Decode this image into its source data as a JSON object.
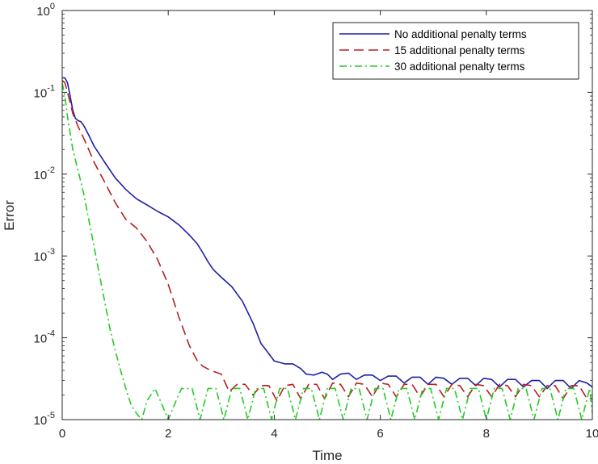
{
  "chart_data": {
    "type": "line",
    "xlabel": "Time",
    "ylabel": "Error",
    "xlim": [
      0,
      10
    ],
    "ylim": [
      1e-05,
      1
    ],
    "yscale": "log",
    "grid": false,
    "legend_position": "top-right",
    "x_ticks": [
      "0",
      "2",
      "4",
      "6",
      "8",
      "10"
    ],
    "y_ticks": [
      {
        "base": "10",
        "exp": "-5",
        "value": 1e-05
      },
      {
        "base": "10",
        "exp": "-4",
        "value": 0.0001
      },
      {
        "base": "10",
        "exp": "-3",
        "value": 0.001
      },
      {
        "base": "10",
        "exp": "-2",
        "value": 0.01
      },
      {
        "base": "10",
        "exp": "-1",
        "value": 0.1
      },
      {
        "base": "10",
        "exp": "0",
        "value": 1
      }
    ],
    "series": [
      {
        "name": "No additional penalty terms",
        "color": "#1f1fa8",
        "style": "solid",
        "x": [
          0,
          0.05,
          0.1,
          0.15,
          0.2,
          0.25,
          0.3,
          0.35,
          0.4,
          0.5,
          0.6,
          0.8,
          1.0,
          1.2,
          1.4,
          1.6,
          1.8,
          2.0,
          2.2,
          2.4,
          2.55,
          2.65,
          2.75,
          2.85,
          3.0,
          3.2,
          3.4,
          3.6,
          3.75,
          3.85,
          4.0,
          4.2,
          4.35,
          4.5,
          4.6,
          4.75,
          4.9,
          5.0,
          5.1,
          5.25,
          5.4,
          5.55,
          5.7,
          5.85,
          6.0,
          6.15,
          6.3,
          6.45,
          6.6,
          6.75,
          6.9,
          7.05,
          7.2,
          7.35,
          7.5,
          7.65,
          7.8,
          7.95,
          8.1,
          8.25,
          8.4,
          8.55,
          8.7,
          8.85,
          9.0,
          9.15,
          9.3,
          9.45,
          9.6,
          9.75,
          9.9,
          10.0
        ],
        "y": [
          0.15,
          0.15,
          0.13,
          0.09,
          0.06,
          0.048,
          0.045,
          0.044,
          0.04,
          0.03,
          0.022,
          0.014,
          0.009,
          0.0065,
          0.005,
          0.0042,
          0.0035,
          0.003,
          0.0024,
          0.0018,
          0.0014,
          0.0011,
          0.00085,
          0.00068,
          0.00055,
          0.00042,
          0.00028,
          0.00015,
          8.5e-05,
          7e-05,
          5.2e-05,
          4.8e-05,
          4.8e-05,
          4.2e-05,
          3.6e-05,
          3.5e-05,
          3.8e-05,
          3.6e-05,
          3.1e-05,
          3.6e-05,
          3.7e-05,
          3.1e-05,
          3.5e-05,
          3.5e-05,
          3e-05,
          3.4e-05,
          3.4e-05,
          2.8e-05,
          3.3e-05,
          3.3e-05,
          2.7e-05,
          3.3e-05,
          3.2e-05,
          2.7e-05,
          3.2e-05,
          3.2e-05,
          2.6e-05,
          3.2e-05,
          3.1e-05,
          2.5e-05,
          3.1e-05,
          3.1e-05,
          2.5e-05,
          3e-05,
          3e-05,
          2.4e-05,
          3e-05,
          3e-05,
          2.4e-05,
          3e-05,
          2.8e-05,
          2.5e-05
        ]
      },
      {
        "name": "15 additional penalty terms",
        "color": "#b81f1f",
        "style": "dashed",
        "x": [
          0,
          0.05,
          0.1,
          0.15,
          0.2,
          0.3,
          0.4,
          0.5,
          0.6,
          0.8,
          1.0,
          1.2,
          1.4,
          1.6,
          1.8,
          2.0,
          2.2,
          2.4,
          2.55,
          2.65,
          2.8,
          3.0,
          3.15,
          3.3,
          3.45,
          3.6,
          3.75,
          3.9,
          4.05,
          4.2,
          4.35,
          4.5,
          4.65,
          4.8,
          4.95,
          5.1,
          5.25,
          5.4,
          5.55,
          5.7,
          5.85,
          6.0,
          6.15,
          6.3,
          6.45,
          6.6,
          6.75,
          6.9,
          7.05,
          7.2,
          7.35,
          7.5,
          7.65,
          7.8,
          7.95,
          8.1,
          8.25,
          8.4,
          8.55,
          8.7,
          8.85,
          9.0,
          9.15,
          9.3,
          9.45,
          9.6,
          9.75,
          9.9,
          10.0
        ],
        "y": [
          0.14,
          0.13,
          0.1,
          0.075,
          0.055,
          0.038,
          0.028,
          0.02,
          0.014,
          0.008,
          0.0045,
          0.0028,
          0.0022,
          0.0015,
          0.0009,
          0.00045,
          0.00018,
          8e-05,
          5.2e-05,
          4.5e-05,
          4e-05,
          3.6e-05,
          2.2e-05,
          2.7e-05,
          2.7e-05,
          2e-05,
          2.6e-05,
          2.6e-05,
          1.7e-05,
          2.6e-05,
          2.7e-05,
          1.8e-05,
          2.7e-05,
          2.7e-05,
          1.8e-05,
          2.8e-05,
          2.7e-05,
          1.9e-05,
          2.8e-05,
          2.7e-05,
          1.9e-05,
          2.8e-05,
          2.7e-05,
          1.9e-05,
          2.7e-05,
          2.7e-05,
          1.9e-05,
          2.7e-05,
          2.7e-05,
          1.9e-05,
          2.7e-05,
          2.6e-05,
          1.9e-05,
          2.7e-05,
          2.6e-05,
          1.9e-05,
          2.7e-05,
          2.6e-05,
          1.9e-05,
          2.7e-05,
          2.6e-05,
          1.9e-05,
          2.6e-05,
          2.6e-05,
          1.8e-05,
          2.6e-05,
          2.6e-05,
          1.8e-05,
          1.8e-05
        ]
      },
      {
        "name": "30 additional penalty terms",
        "color": "#22cc22",
        "style": "dashdot",
        "x": [
          0,
          0.05,
          0.1,
          0.2,
          0.3,
          0.4,
          0.5,
          0.6,
          0.7,
          0.8,
          0.9,
          1.0,
          1.1,
          1.2,
          1.3,
          1.4,
          1.5,
          1.6,
          1.75,
          1.85,
          2.0,
          2.15,
          2.25,
          2.45,
          2.6,
          2.75,
          2.9,
          3.05,
          3.2,
          3.35,
          3.5,
          3.65,
          3.8,
          3.95,
          4.1,
          4.25,
          4.4,
          4.55,
          4.7,
          4.85,
          5.0,
          5.15,
          5.3,
          5.45,
          5.6,
          5.75,
          5.9,
          6.05,
          6.2,
          6.35,
          6.5,
          6.65,
          6.8,
          6.95,
          7.1,
          7.25,
          7.4,
          7.55,
          7.7,
          7.85,
          8.0,
          8.15,
          8.3,
          8.45,
          8.6,
          8.75,
          8.9,
          9.05,
          9.2,
          9.35,
          9.5,
          9.65,
          9.8,
          9.95,
          10.0
        ],
        "y": [
          0.13,
          0.09,
          0.05,
          0.02,
          0.011,
          0.006,
          0.0028,
          0.0013,
          0.0006,
          0.00028,
          0.00013,
          7e-05,
          4e-05,
          2.4e-05,
          1.5e-05,
          1.2e-05,
          1e-05,
          1.7e-05,
          2.4e-05,
          1.7e-05,
          1e-05,
          1.7e-05,
          2.4e-05,
          2.4e-05,
          1e-05,
          2.4e-05,
          2.4e-05,
          1e-05,
          2.4e-05,
          2.4e-05,
          1e-05,
          2.4e-05,
          2.4e-05,
          1e-05,
          2.4e-05,
          2.4e-05,
          1e-05,
          2.4e-05,
          2.4e-05,
          1e-05,
          2.4e-05,
          2.4e-05,
          1e-05,
          2.4e-05,
          2.4e-05,
          1e-05,
          2.4e-05,
          2.4e-05,
          1e-05,
          2.4e-05,
          2.4e-05,
          1e-05,
          2.4e-05,
          2.4e-05,
          1e-05,
          2.4e-05,
          2.4e-05,
          1e-05,
          2.4e-05,
          2.4e-05,
          1e-05,
          2.4e-05,
          2.4e-05,
          1e-05,
          2.4e-05,
          2.4e-05,
          1e-05,
          2.4e-05,
          2.4e-05,
          1e-05,
          2.4e-05,
          2.4e-05,
          1e-05,
          2.4e-05,
          1.2e-05
        ]
      }
    ]
  }
}
